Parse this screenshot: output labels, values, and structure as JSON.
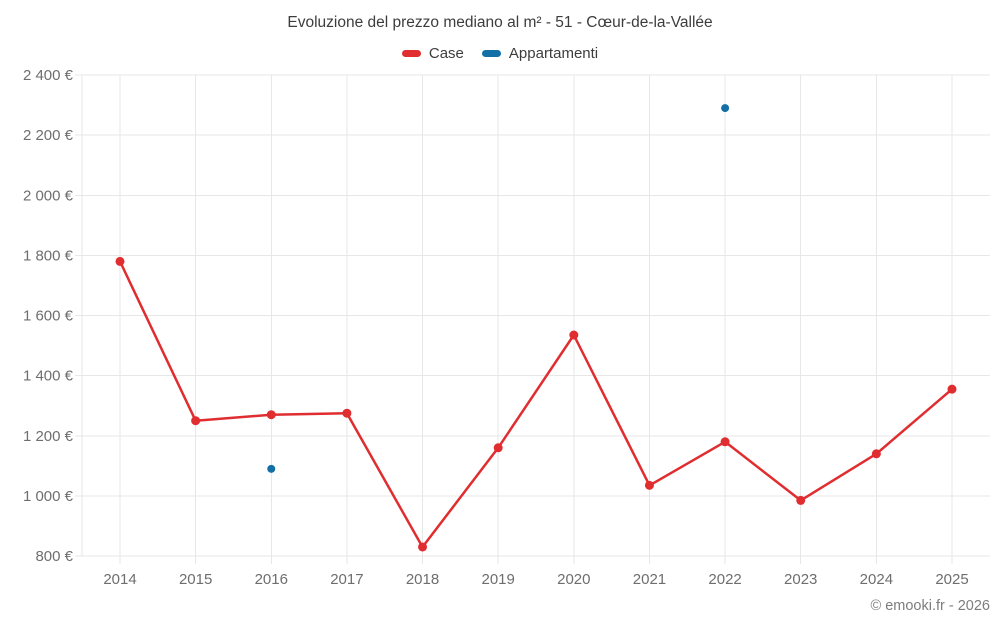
{
  "copyright": "© emooki.fr - 2026",
  "chart_data": {
    "type": "line",
    "title": "Evoluzione del prezzo mediano al m² - 51 - Cœur-de-la-Vallée",
    "categories": [
      "2014",
      "2015",
      "2016",
      "2017",
      "2018",
      "2019",
      "2020",
      "2021",
      "2022",
      "2023",
      "2024",
      "2025"
    ],
    "series": [
      {
        "name": "Case",
        "color": "#e02d30",
        "marker_only": false,
        "values": [
          1780,
          1250,
          1270,
          1275,
          830,
          1160,
          1535,
          1035,
          1180,
          985,
          1140,
          1355
        ]
      },
      {
        "name": "Appartamenti",
        "color": "#1270a7",
        "marker_only": true,
        "values": [
          null,
          null,
          1090,
          null,
          null,
          null,
          null,
          null,
          2290,
          null,
          null,
          null
        ]
      }
    ],
    "xlabel": "",
    "ylabel": "",
    "ylim": [
      800,
      2400
    ],
    "y_ticks": [
      {
        "value": 800,
        "label": "800 €"
      },
      {
        "value": 1000,
        "label": "1 000 €"
      },
      {
        "value": 1200,
        "label": "1 200 €"
      },
      {
        "value": 1400,
        "label": "1 400 €"
      },
      {
        "value": 1600,
        "label": "1 600 €"
      },
      {
        "value": 1800,
        "label": "1 800 €"
      },
      {
        "value": 2000,
        "label": "2 000 €"
      },
      {
        "value": 2200,
        "label": "2 200 €"
      },
      {
        "value": 2400,
        "label": "2 400 €"
      }
    ],
    "grid": true,
    "legend_position": "top"
  }
}
